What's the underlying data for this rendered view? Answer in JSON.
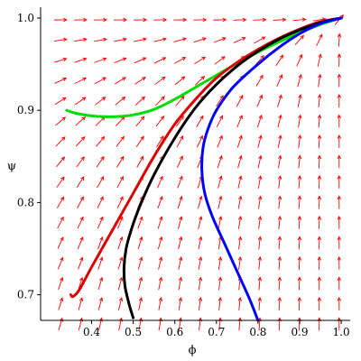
{
  "chart_data": {
    "type": "line",
    "title": "",
    "xlabel": "ϕ",
    "ylabel": "ψ",
    "xlim": [
      0.3,
      1.0
    ],
    "ylim": [
      0.66,
      1.0
    ],
    "xticks": [
      "0.4",
      "0.5",
      "0.6",
      "0.7",
      "0.8",
      "0.9",
      "1.0"
    ],
    "yticks": [
      "0.7",
      "0.8",
      "0.9",
      "1.0"
    ],
    "grid": false,
    "direction_field": {
      "color": "#ff0000",
      "nx": 15,
      "ny": 16
    },
    "series": [
      {
        "color": "#00dd00",
        "points": [
          [
            0.34,
            0.9
          ],
          [
            0.36,
            0.897
          ],
          [
            0.4,
            0.894
          ],
          [
            0.45,
            0.893
          ],
          [
            0.5,
            0.895
          ],
          [
            0.55,
            0.901
          ],
          [
            0.6,
            0.912
          ],
          [
            0.65,
            0.925
          ],
          [
            0.7,
            0.938
          ],
          [
            0.75,
            0.951
          ],
          [
            0.8,
            0.963
          ],
          [
            0.85,
            0.974
          ],
          [
            0.9,
            0.984
          ],
          [
            0.95,
            0.993
          ],
          [
            1.0,
            1.0
          ]
        ]
      },
      {
        "color": "#dd0000",
        "points": [
          [
            0.35,
            0.7
          ],
          [
            0.355,
            0.698
          ],
          [
            0.37,
            0.705
          ],
          [
            0.4,
            0.73
          ],
          [
            0.45,
            0.77
          ],
          [
            0.5,
            0.81
          ],
          [
            0.55,
            0.85
          ],
          [
            0.6,
            0.885
          ],
          [
            0.65,
            0.912
          ],
          [
            0.7,
            0.935
          ],
          [
            0.75,
            0.952
          ],
          [
            0.8,
            0.966
          ],
          [
            0.85,
            0.978
          ],
          [
            0.9,
            0.988
          ],
          [
            0.95,
            0.996
          ],
          [
            1.0,
            1.0
          ]
        ]
      },
      {
        "color": "#000000",
        "points": [
          [
            0.5,
            0.675
          ],
          [
            0.49,
            0.69
          ],
          [
            0.48,
            0.71
          ],
          [
            0.478,
            0.73
          ],
          [
            0.483,
            0.75
          ],
          [
            0.495,
            0.77
          ],
          [
            0.515,
            0.795
          ],
          [
            0.55,
            0.83
          ],
          [
            0.6,
            0.87
          ],
          [
            0.65,
            0.903
          ],
          [
            0.7,
            0.928
          ],
          [
            0.75,
            0.948
          ],
          [
            0.8,
            0.964
          ],
          [
            0.85,
            0.977
          ],
          [
            0.9,
            0.987
          ],
          [
            0.95,
            0.995
          ],
          [
            1.0,
            1.0
          ]
        ]
      },
      {
        "color": "#0000ff",
        "points": [
          [
            0.8,
            0.672
          ],
          [
            0.78,
            0.695
          ],
          [
            0.75,
            0.725
          ],
          [
            0.72,
            0.755
          ],
          [
            0.69,
            0.785
          ],
          [
            0.672,
            0.81
          ],
          [
            0.665,
            0.835
          ],
          [
            0.668,
            0.86
          ],
          [
            0.68,
            0.88
          ],
          [
            0.7,
            0.9
          ],
          [
            0.74,
            0.925
          ],
          [
            0.8,
            0.95
          ],
          [
            0.85,
            0.968
          ],
          [
            0.9,
            0.983
          ],
          [
            0.95,
            0.994
          ],
          [
            1.0,
            1.0
          ]
        ]
      }
    ]
  }
}
